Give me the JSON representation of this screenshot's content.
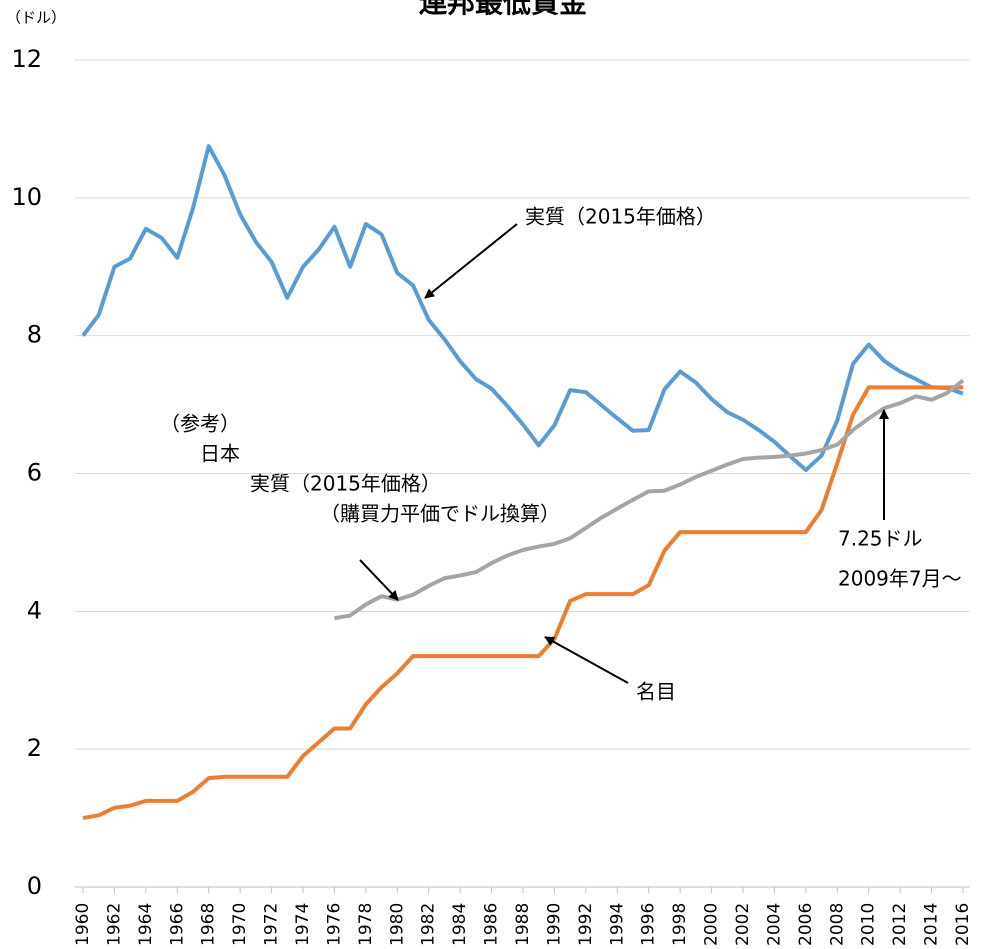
{
  "chart_data": {
    "type": "line",
    "title": "連邦最低賃金",
    "y_unit": "（ドル）",
    "x": [
      1960,
      1961,
      1962,
      1963,
      1964,
      1965,
      1966,
      1967,
      1968,
      1969,
      1970,
      1971,
      1972,
      1973,
      1974,
      1975,
      1976,
      1977,
      1978,
      1979,
      1980,
      1981,
      1982,
      1983,
      1984,
      1985,
      1986,
      1987,
      1988,
      1989,
      1990,
      1991,
      1992,
      1993,
      1994,
      1995,
      1996,
      1997,
      1998,
      1999,
      2000,
      2001,
      2002,
      2003,
      2004,
      2005,
      2006,
      2007,
      2008,
      2009,
      2010,
      2011,
      2012,
      2013,
      2014,
      2015,
      2016
    ],
    "series": [
      {
        "color": "#5b9bd5",
        "values": [
          8.0,
          8.3,
          9.0,
          9.12,
          9.55,
          9.42,
          9.13,
          9.85,
          10.75,
          10.33,
          9.76,
          9.36,
          9.07,
          8.55,
          9.0,
          9.25,
          9.58,
          9.0,
          9.62,
          9.47,
          8.91,
          8.73,
          8.23,
          7.95,
          7.63,
          7.37,
          7.23,
          6.98,
          6.71,
          6.41,
          6.7,
          7.21,
          7.18,
          6.99,
          6.8,
          6.62,
          6.63,
          7.22,
          7.48,
          7.32,
          7.08,
          6.89,
          6.78,
          6.63,
          6.46,
          6.25,
          6.05,
          6.26,
          6.77,
          7.59,
          7.87,
          7.63,
          7.48,
          7.37,
          7.25,
          7.24,
          7.16
        ]
      },
      {
        "color": "#ed7d31",
        "values": [
          1.0,
          1.04,
          1.15,
          1.18,
          1.25,
          1.25,
          1.25,
          1.38,
          1.58,
          1.6,
          1.6,
          1.6,
          1.6,
          1.6,
          1.9,
          2.1,
          2.3,
          2.3,
          2.65,
          2.9,
          3.1,
          3.35,
          3.35,
          3.35,
          3.35,
          3.35,
          3.35,
          3.35,
          3.35,
          3.35,
          3.6,
          4.15,
          4.25,
          4.25,
          4.25,
          4.25,
          4.38,
          4.88,
          5.15,
          5.15,
          5.15,
          5.15,
          5.15,
          5.15,
          5.15,
          5.15,
          5.15,
          5.47,
          6.15,
          6.85,
          7.25,
          7.25,
          7.25,
          7.25,
          7.25,
          7.25,
          7.25
        ]
      },
      {
        "color": "#a5a5a5",
        "values": [
          null,
          null,
          null,
          null,
          null,
          null,
          null,
          null,
          null,
          null,
          null,
          null,
          null,
          null,
          null,
          null,
          3.9,
          3.94,
          4.1,
          4.22,
          4.17,
          4.24,
          4.37,
          4.48,
          4.52,
          4.57,
          4.7,
          4.81,
          4.89,
          4.94,
          4.98,
          5.06,
          5.21,
          5.36,
          5.49,
          5.62,
          5.74,
          5.75,
          5.84,
          5.95,
          6.04,
          6.13,
          6.21,
          6.23,
          6.24,
          6.26,
          6.29,
          6.34,
          6.42,
          6.63,
          6.8,
          6.95,
          7.02,
          7.12,
          7.07,
          7.17,
          7.35
        ]
      }
    ],
    "annotations": [
      {
        "lines": [
          "実質（2015年価格）"
        ]
      },
      {
        "lines": [
          "（参考）",
          "日本",
          "実質（2015年価格）",
          "（購買力平価でドル換算）"
        ]
      },
      {
        "lines": [
          "名目"
        ]
      },
      {
        "lines": [
          "7.25ドル",
          "2009年7月～"
        ]
      }
    ],
    "xlim": [
      1960,
      2016
    ],
    "xticks": [
      1960,
      1962,
      1964,
      1966,
      1968,
      1970,
      1972,
      1974,
      1976,
      1978,
      1980,
      1982,
      1984,
      1986,
      1988,
      1990,
      1992,
      1994,
      1996,
      1998,
      2000,
      2002,
      2004,
      2006,
      2008,
      2010,
      2012,
      2014,
      2016
    ],
    "ylim": [
      0,
      12
    ],
    "yticks": [
      0,
      2,
      4,
      6,
      8,
      10,
      12
    ],
    "grid": true
  }
}
